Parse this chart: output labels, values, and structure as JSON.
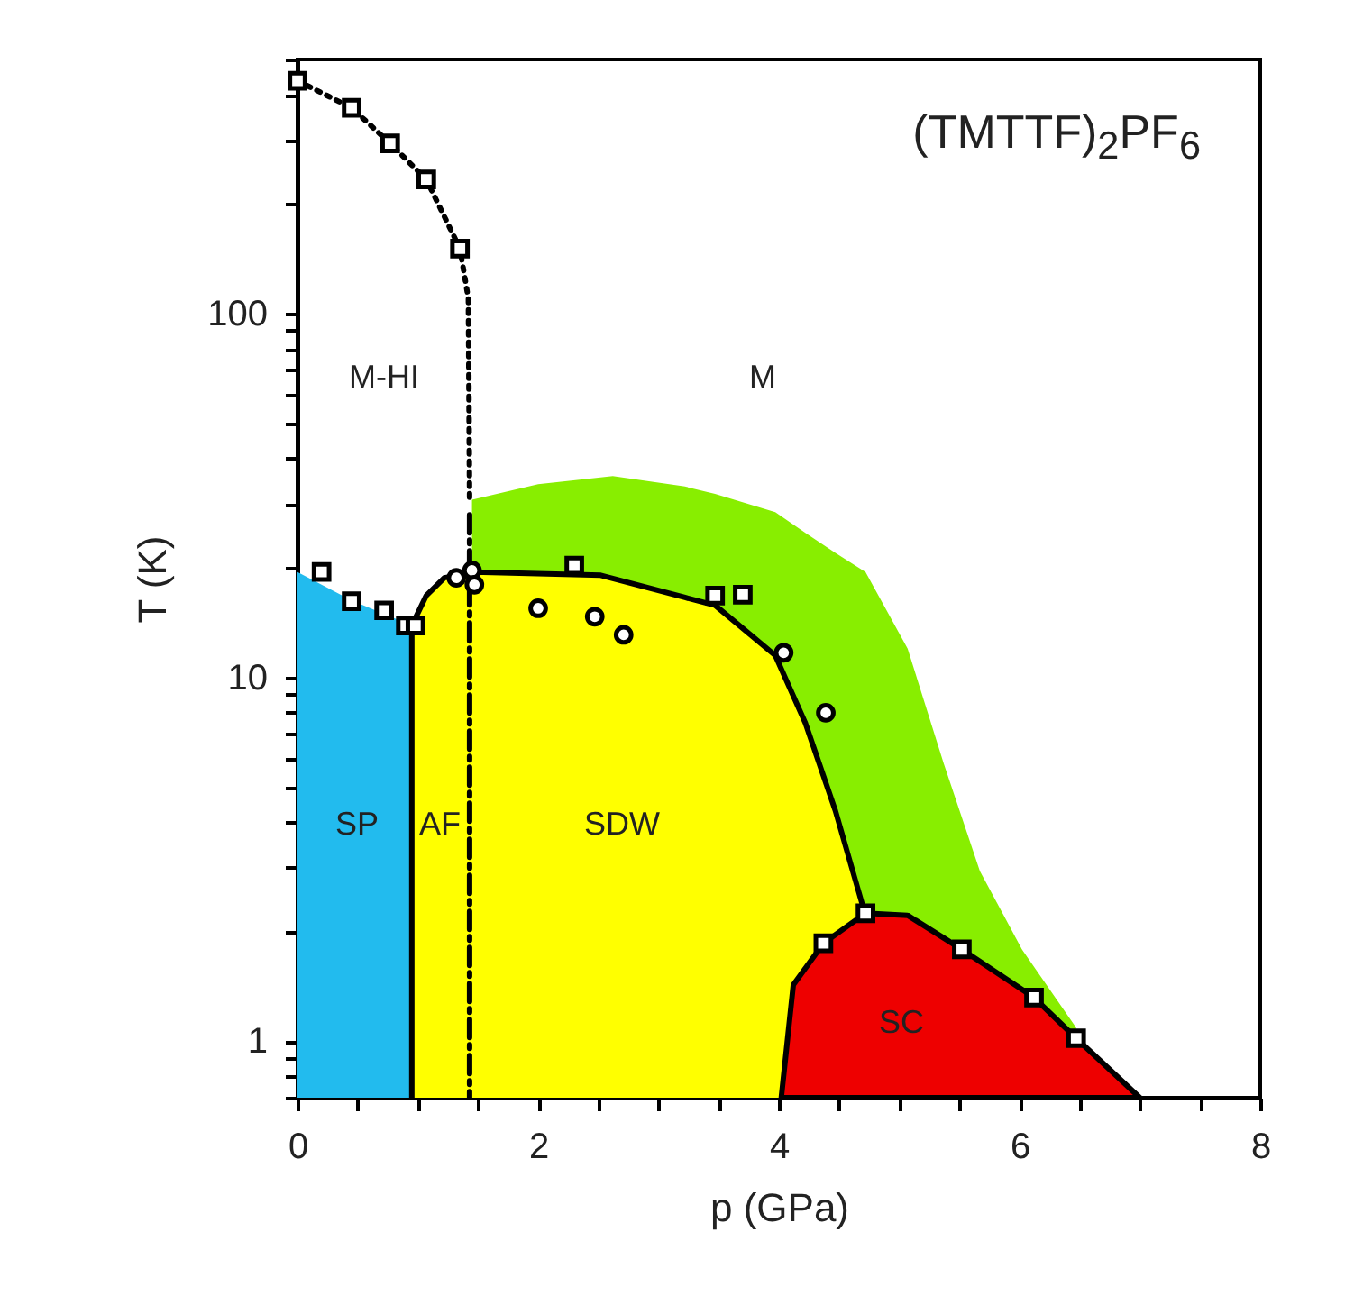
{
  "chart_data": {
    "type": "area",
    "title": "(TMTTF)$_{2}$PF$_{6}$",
    "xlabel": "p (GPa)",
    "ylabel": "T (K)",
    "log": "y",
    "grid": false,
    "xlim": [
      0,
      8
    ],
    "xticks": [
      0,
      {
        "value": 0.5,
        "label": null
      },
      {
        "value": 1,
        "label": null
      },
      {
        "value": 1.5,
        "label": null
      },
      2,
      {
        "value": 2.5,
        "label": null
      },
      {
        "value": 3,
        "label": null
      },
      {
        "value": 3.5,
        "label": null
      },
      4,
      {
        "value": 4.5,
        "label": null
      },
      {
        "value": 5,
        "label": null
      },
      {
        "value": 5.5,
        "label": null
      },
      6,
      {
        "value": 6.5,
        "label": null
      },
      {
        "value": 7,
        "label": null
      },
      {
        "value": 7.5,
        "label": null
      },
      8
    ],
    "ylim": [
      0.7,
      500
    ],
    "yticks": [
      {
        "value": 0.7,
        "label": null
      },
      {
        "value": 0.8,
        "label": null
      },
      {
        "value": 0.9,
        "label": null
      },
      1,
      {
        "value": 2,
        "label": null
      },
      {
        "value": 3,
        "label": null
      },
      {
        "value": 4,
        "label": null
      },
      {
        "value": 5,
        "label": null
      },
      {
        "value": 6,
        "label": null
      },
      {
        "value": 7,
        "label": null
      },
      {
        "value": 8,
        "label": null
      },
      {
        "value": 9,
        "label": null
      },
      10,
      {
        "value": 20,
        "label": null
      },
      {
        "value": 30,
        "label": null
      },
      {
        "value": 40,
        "label": null
      },
      {
        "value": 50,
        "label": null
      },
      {
        "value": 60,
        "label": null
      },
      {
        "value": 70,
        "label": null
      },
      {
        "value": 80,
        "label": null
      },
      {
        "value": 90,
        "label": null
      },
      100,
      {
        "value": 200,
        "label": null
      },
      {
        "value": 300,
        "label": null
      },
      {
        "value": 400,
        "label": null
      },
      {
        "value": 500,
        "label": null
      }
    ],
    "series": [
      {
        "color": "#88ee00",
        "x": [
          1.45,
          2.0,
          2.62,
          3.22,
          3.47,
          3.97,
          4.22,
          4.47,
          4.72,
          5.07,
          5.37,
          5.67,
          6.02,
          6.47
        ],
        "values": [
          30.8,
          34,
          35.8,
          33.5,
          32,
          28.5,
          25,
          22,
          19.5,
          12,
          5.8,
          2.94,
          1.79,
          1.09
        ]
      },
      {
        "color": "#22bbee",
        "x": [
          0,
          0.45,
          0.95
        ],
        "values": [
          19.5,
          16.3,
          13.9
        ]
      },
      {
        "color": "#ffff00",
        "x": [
          0.95,
          1.07,
          1.22,
          1.47,
          2.52,
          3.22,
          3.47,
          3.97,
          4.22,
          4.47,
          4.69,
          4.72
        ],
        "values": [
          13.9,
          16.8,
          18.8,
          19.5,
          19.1,
          16.6,
          15.8,
          11.5,
          7.5,
          4.3,
          2.4,
          2.25
        ]
      },
      {
        "color": "#ee0000",
        "line_style": "solid",
        "x": [
          4.02,
          4.12,
          4.37,
          4.72,
          5.07,
          5.52,
          6.12,
          6.47,
          7.0
        ],
        "values": [
          0.7,
          1.43,
          1.86,
          2.25,
          2.22,
          1.79,
          1.32,
          1.02,
          0.7
        ]
      },
      {
        "type": "line",
        "color": "#000000",
        "line_style": "solid",
        "x": [
          0.95,
          0.95,
          1.07,
          1.22,
          1.47,
          2.52,
          3.22,
          3.47,
          3.97,
          4.22,
          4.47,
          4.69
        ],
        "values": [
          0.7,
          13.9,
          16.8,
          18.8,
          19.5,
          19.1,
          16.6,
          15.8,
          11.5,
          7.5,
          4.3,
          2.4
        ]
      },
      {
        "type": "line",
        "color": "#000000",
        "line_style": "dotted",
        "x": [
          0,
          0.45,
          0.77,
          1.07,
          1.35,
          1.42,
          1.43
        ],
        "values": [
          437,
          368,
          294,
          234,
          151,
          110,
          30.8
        ]
      },
      {
        "type": "line",
        "color": "#000000",
        "line_style": "dashed",
        "x": [
          1.43,
          1.43
        ],
        "values": [
          28,
          0.7
        ]
      },
      {
        "type": "scatter",
        "color": "#000000",
        "marker": "square",
        "x": [
          0,
          0.45,
          0.77,
          1.07,
          1.35,
          0.2,
          0.45,
          0.72,
          0.9,
          0.98,
          2.3,
          3.47,
          3.7,
          4.37,
          4.72,
          5.52,
          6.12,
          6.47
        ],
        "values": [
          437,
          368,
          294,
          234,
          151,
          19.5,
          16.2,
          15.3,
          13.9,
          13.9,
          20.3,
          16.8,
          16.9,
          1.86,
          2.25,
          1.79,
          1.32,
          1.02
        ]
      },
      {
        "type": "scatter",
        "color": "#000000",
        "marker": "circle",
        "x": [
          1.32,
          1.45,
          1.47,
          2.0,
          2.47,
          2.71,
          4.04,
          4.39
        ],
        "values": [
          18.8,
          19.7,
          18,
          15.5,
          14.7,
          13.1,
          11.7,
          8.0
        ]
      }
    ],
    "annotations": [
      "M-HI",
      "M",
      "SP",
      "AF",
      "SDW",
      "SC"
    ]
  }
}
